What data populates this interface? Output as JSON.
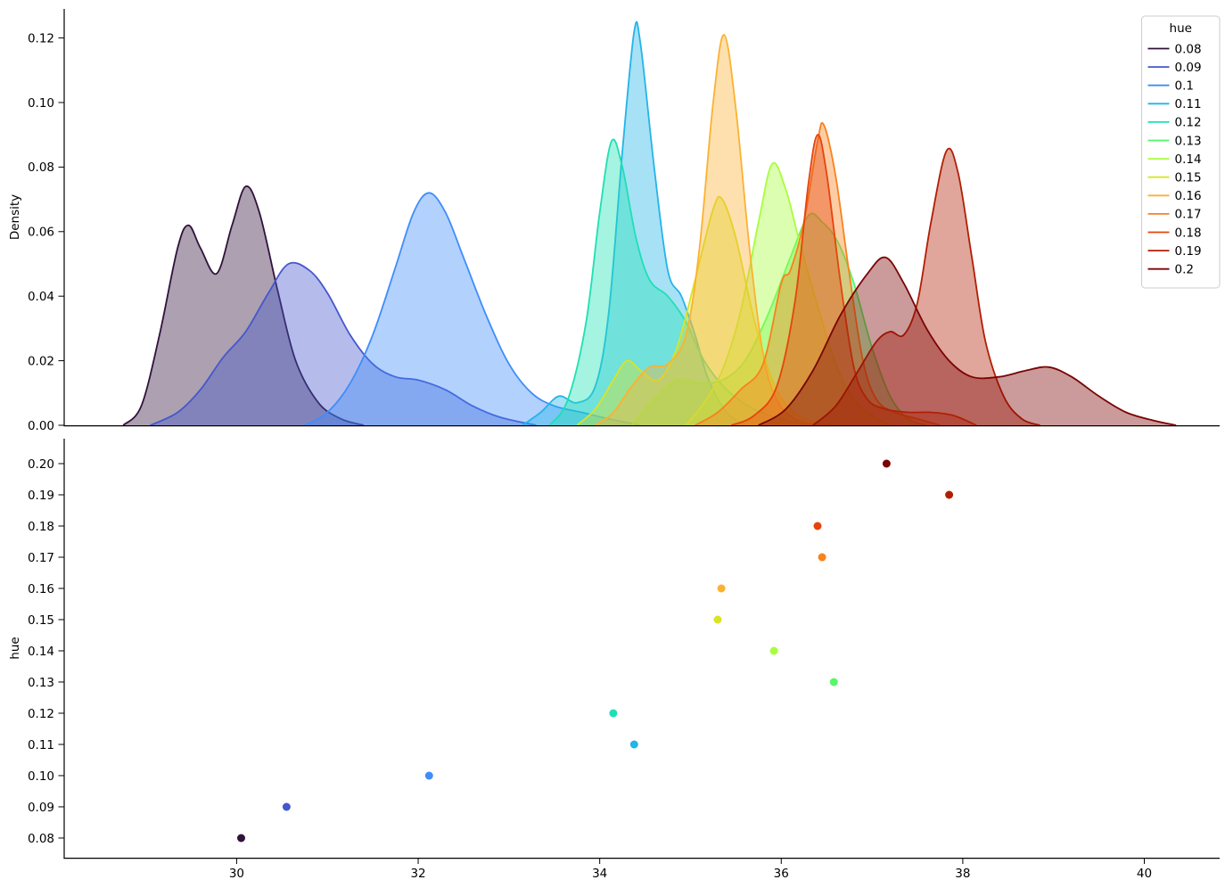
{
  "figure": {
    "background": "#ffffff"
  },
  "chart_data": [
    {
      "id": "kde-plot",
      "type": "area",
      "title": "",
      "xlabel": "",
      "ylabel": "Density",
      "xlim": [
        28.1,
        40.83
      ],
      "ylim": [
        0,
        0.129
      ],
      "grid": false,
      "legend": {
        "title": "hue",
        "position": "upper right"
      },
      "yticks": [
        {
          "value": 0.0,
          "label": "0.00"
        },
        {
          "value": 0.02,
          "label": "0.02"
        },
        {
          "value": 0.04,
          "label": "0.04"
        },
        {
          "value": 0.06,
          "label": "0.06"
        },
        {
          "value": 0.08,
          "label": "0.08"
        },
        {
          "value": 0.1,
          "label": "0.10"
        },
        {
          "value": 0.12,
          "label": "0.12"
        }
      ],
      "fill_alpha": 0.4,
      "series": [
        {
          "name": "0.08",
          "color": "#30123b",
          "points": [
            [
              28.75,
              0
            ],
            [
              28.95,
              0.006
            ],
            [
              29.15,
              0.028
            ],
            [
              29.35,
              0.055
            ],
            [
              29.47,
              0.062
            ],
            [
              29.6,
              0.055
            ],
            [
              29.78,
              0.047
            ],
            [
              29.95,
              0.062
            ],
            [
              30.1,
              0.074
            ],
            [
              30.25,
              0.066
            ],
            [
              30.45,
              0.042
            ],
            [
              30.65,
              0.02
            ],
            [
              30.9,
              0.007
            ],
            [
              31.15,
              0.002
            ],
            [
              31.4,
              0
            ]
          ]
        },
        {
          "name": "0.09",
          "color": "#4557cc",
          "points": [
            [
              29.05,
              0
            ],
            [
              29.35,
              0.004
            ],
            [
              29.6,
              0.011
            ],
            [
              29.85,
              0.021
            ],
            [
              30.1,
              0.029
            ],
            [
              30.35,
              0.041
            ],
            [
              30.57,
              0.05
            ],
            [
              30.8,
              0.048
            ],
            [
              31.0,
              0.041
            ],
            [
              31.25,
              0.028
            ],
            [
              31.5,
              0.019
            ],
            [
              31.75,
              0.015
            ],
            [
              32.0,
              0.014
            ],
            [
              32.3,
              0.011
            ],
            [
              32.6,
              0.006
            ],
            [
              32.9,
              0.0025
            ],
            [
              33.3,
              0
            ]
          ]
        },
        {
          "name": "0.1",
          "color": "#3f8dfb",
          "points": [
            [
              30.75,
              0
            ],
            [
              31.0,
              0.004
            ],
            [
              31.25,
              0.013
            ],
            [
              31.5,
              0.028
            ],
            [
              31.75,
              0.049
            ],
            [
              31.95,
              0.066
            ],
            [
              32.12,
              0.072
            ],
            [
              32.3,
              0.066
            ],
            [
              32.5,
              0.052
            ],
            [
              32.75,
              0.034
            ],
            [
              33.0,
              0.019
            ],
            [
              33.25,
              0.01
            ],
            [
              33.5,
              0.006
            ],
            [
              33.8,
              0.004
            ],
            [
              34.1,
              0.002
            ],
            [
              34.45,
              0
            ]
          ]
        },
        {
          "name": "0.11",
          "color": "#23b4e9",
          "points": [
            [
              33.15,
              0
            ],
            [
              33.35,
              0.004
            ],
            [
              33.55,
              0.009
            ],
            [
              33.75,
              0.007
            ],
            [
              33.95,
              0.012
            ],
            [
              34.1,
              0.035
            ],
            [
              34.25,
              0.085
            ],
            [
              34.38,
              0.122
            ],
            [
              34.45,
              0.118
            ],
            [
              34.6,
              0.08
            ],
            [
              34.75,
              0.048
            ],
            [
              34.9,
              0.04
            ],
            [
              35.05,
              0.028
            ],
            [
              35.2,
              0.014
            ],
            [
              35.4,
              0.004
            ],
            [
              35.6,
              0
            ]
          ]
        },
        {
          "name": "0.12",
          "color": "#1fe0b4",
          "points": [
            [
              33.45,
              0
            ],
            [
              33.65,
              0.008
            ],
            [
              33.85,
              0.032
            ],
            [
              34.0,
              0.066
            ],
            [
              34.13,
              0.088
            ],
            [
              34.25,
              0.08
            ],
            [
              34.4,
              0.058
            ],
            [
              34.55,
              0.045
            ],
            [
              34.75,
              0.04
            ],
            [
              34.95,
              0.032
            ],
            [
              35.15,
              0.02
            ],
            [
              35.4,
              0.011
            ],
            [
              35.7,
              0.005
            ],
            [
              36.0,
              0.002
            ],
            [
              36.3,
              0
            ]
          ]
        },
        {
          "name": "0.13",
          "color": "#55f868",
          "points": [
            [
              34.35,
              0
            ],
            [
              34.6,
              0.008
            ],
            [
              34.85,
              0.014
            ],
            [
              35.1,
              0.013
            ],
            [
              35.35,
              0.014
            ],
            [
              35.6,
              0.02
            ],
            [
              35.85,
              0.034
            ],
            [
              36.1,
              0.052
            ],
            [
              36.3,
              0.065
            ],
            [
              36.45,
              0.063
            ],
            [
              36.62,
              0.057
            ],
            [
              36.8,
              0.044
            ],
            [
              37.0,
              0.024
            ],
            [
              37.2,
              0.009
            ],
            [
              37.4,
              0.002
            ],
            [
              37.6,
              0
            ]
          ]
        },
        {
          "name": "0.14",
          "color": "#a8fd3d",
          "points": [
            [
              34.95,
              0
            ],
            [
              35.15,
              0.007
            ],
            [
              35.35,
              0.017
            ],
            [
              35.55,
              0.035
            ],
            [
              35.75,
              0.063
            ],
            [
              35.9,
              0.081
            ],
            [
              36.05,
              0.073
            ],
            [
              36.2,
              0.057
            ],
            [
              36.4,
              0.037
            ],
            [
              36.6,
              0.019
            ],
            [
              36.8,
              0.008
            ],
            [
              37.0,
              0.003
            ],
            [
              37.2,
              0
            ]
          ]
        },
        {
          "name": "0.15",
          "color": "#d9e426",
          "points": [
            [
              33.75,
              0
            ],
            [
              33.95,
              0.005
            ],
            [
              34.15,
              0.014
            ],
            [
              34.3,
              0.02
            ],
            [
              34.45,
              0.017
            ],
            [
              34.65,
              0.014
            ],
            [
              34.85,
              0.024
            ],
            [
              35.05,
              0.045
            ],
            [
              35.25,
              0.067
            ],
            [
              35.35,
              0.07
            ],
            [
              35.5,
              0.058
            ],
            [
              35.7,
              0.033
            ],
            [
              35.9,
              0.014
            ],
            [
              36.1,
              0.005
            ],
            [
              36.35,
              0.001
            ],
            [
              36.6,
              0
            ]
          ]
        },
        {
          "name": "0.16",
          "color": "#fbb232",
          "points": [
            [
              33.95,
              0
            ],
            [
              34.15,
              0.004
            ],
            [
              34.35,
              0.012
            ],
            [
              34.55,
              0.018
            ],
            [
              34.75,
              0.019
            ],
            [
              34.95,
              0.028
            ],
            [
              35.1,
              0.055
            ],
            [
              35.25,
              0.1
            ],
            [
              35.37,
              0.121
            ],
            [
              35.5,
              0.098
            ],
            [
              35.65,
              0.055
            ],
            [
              35.8,
              0.022
            ],
            [
              35.95,
              0.008
            ],
            [
              36.15,
              0.002
            ],
            [
              36.4,
              0
            ]
          ]
        },
        {
          "name": "0.17",
          "color": "#f8821d",
          "points": [
            [
              35.05,
              0
            ],
            [
              35.3,
              0.004
            ],
            [
              35.55,
              0.011
            ],
            [
              35.8,
              0.019
            ],
            [
              36.0,
              0.044
            ],
            [
              36.1,
              0.048
            ],
            [
              36.25,
              0.063
            ],
            [
              36.4,
              0.088
            ],
            [
              36.47,
              0.093
            ],
            [
              36.6,
              0.077
            ],
            [
              36.75,
              0.047
            ],
            [
              36.9,
              0.02
            ],
            [
              37.05,
              0.008
            ],
            [
              37.25,
              0.004
            ],
            [
              37.5,
              0.002
            ],
            [
              37.75,
              0
            ]
          ]
        },
        {
          "name": "0.18",
          "color": "#e6440c",
          "points": [
            [
              35.45,
              0
            ],
            [
              35.7,
              0.003
            ],
            [
              35.95,
              0.012
            ],
            [
              36.15,
              0.038
            ],
            [
              36.3,
              0.075
            ],
            [
              36.4,
              0.09
            ],
            [
              36.5,
              0.078
            ],
            [
              36.65,
              0.045
            ],
            [
              36.8,
              0.018
            ],
            [
              36.95,
              0.008
            ],
            [
              37.15,
              0.005
            ],
            [
              37.4,
              0.004
            ],
            [
              37.65,
              0.004
            ],
            [
              37.9,
              0.003
            ],
            [
              38.15,
              0
            ]
          ]
        },
        {
          "name": "0.19",
          "color": "#b11e04",
          "points": [
            [
              36.35,
              0
            ],
            [
              36.6,
              0.006
            ],
            [
              36.85,
              0.017
            ],
            [
              37.05,
              0.026
            ],
            [
              37.2,
              0.029
            ],
            [
              37.35,
              0.028
            ],
            [
              37.5,
              0.038
            ],
            [
              37.65,
              0.063
            ],
            [
              37.82,
              0.085
            ],
            [
              37.95,
              0.078
            ],
            [
              38.1,
              0.052
            ],
            [
              38.25,
              0.026
            ],
            [
              38.45,
              0.009
            ],
            [
              38.65,
              0.002
            ],
            [
              38.85,
              0
            ]
          ]
        },
        {
          "name": "0.2",
          "color": "#7a0403",
          "points": [
            [
              35.75,
              0
            ],
            [
              36.05,
              0.005
            ],
            [
              36.35,
              0.017
            ],
            [
              36.65,
              0.034
            ],
            [
              36.95,
              0.047
            ],
            [
              37.15,
              0.052
            ],
            [
              37.35,
              0.044
            ],
            [
              37.6,
              0.03
            ],
            [
              37.85,
              0.02
            ],
            [
              38.1,
              0.015
            ],
            [
              38.4,
              0.015
            ],
            [
              38.7,
              0.017
            ],
            [
              38.95,
              0.018
            ],
            [
              39.2,
              0.015
            ],
            [
              39.5,
              0.009
            ],
            [
              39.8,
              0.004
            ],
            [
              40.1,
              0.0015
            ],
            [
              40.35,
              0
            ]
          ]
        }
      ]
    },
    {
      "id": "scatter-plot",
      "type": "scatter",
      "title": "",
      "xlabel": "",
      "ylabel": "hue",
      "xlim": [
        28.1,
        40.83
      ],
      "ylim": [
        0.0737,
        0.208
      ],
      "grid": false,
      "xticks": [
        {
          "value": 30,
          "label": "30"
        },
        {
          "value": 32,
          "label": "32"
        },
        {
          "value": 34,
          "label": "34"
        },
        {
          "value": 36,
          "label": "36"
        },
        {
          "value": 38,
          "label": "38"
        },
        {
          "value": 40,
          "label": "40"
        }
      ],
      "yticks": [
        {
          "value": 0.08,
          "label": "0.08"
        },
        {
          "value": 0.09,
          "label": "0.09"
        },
        {
          "value": 0.1,
          "label": "0.10"
        },
        {
          "value": 0.11,
          "label": "0.11"
        },
        {
          "value": 0.12,
          "label": "0.12"
        },
        {
          "value": 0.13,
          "label": "0.13"
        },
        {
          "value": 0.14,
          "label": "0.14"
        },
        {
          "value": 0.15,
          "label": "0.15"
        },
        {
          "value": 0.16,
          "label": "0.16"
        },
        {
          "value": 0.17,
          "label": "0.17"
        },
        {
          "value": 0.18,
          "label": "0.18"
        },
        {
          "value": 0.19,
          "label": "0.19"
        },
        {
          "value": 0.2,
          "label": "0.20"
        }
      ],
      "points": [
        {
          "hue": "0.08",
          "x": 30.05,
          "y": 0.08,
          "color": "#30123b"
        },
        {
          "hue": "0.09",
          "x": 30.55,
          "y": 0.09,
          "color": "#4557cc"
        },
        {
          "hue": "0.1",
          "x": 32.12,
          "y": 0.1,
          "color": "#3f8dfb"
        },
        {
          "hue": "0.11",
          "x": 34.38,
          "y": 0.11,
          "color": "#23b4e9"
        },
        {
          "hue": "0.12",
          "x": 34.15,
          "y": 0.12,
          "color": "#1fe0b4"
        },
        {
          "hue": "0.13",
          "x": 36.58,
          "y": 0.13,
          "color": "#55f868"
        },
        {
          "hue": "0.14",
          "x": 35.92,
          "y": 0.14,
          "color": "#a8fd3d"
        },
        {
          "hue": "0.15",
          "x": 35.3,
          "y": 0.15,
          "color": "#d9e426"
        },
        {
          "hue": "0.16",
          "x": 35.34,
          "y": 0.16,
          "color": "#fbb232"
        },
        {
          "hue": "0.17",
          "x": 36.45,
          "y": 0.17,
          "color": "#f8821d"
        },
        {
          "hue": "0.18",
          "x": 36.4,
          "y": 0.18,
          "color": "#e6440c"
        },
        {
          "hue": "0.19",
          "x": 37.85,
          "y": 0.19,
          "color": "#b11e04"
        },
        {
          "hue": "0.2",
          "x": 37.16,
          "y": 0.2,
          "color": "#7a0403"
        }
      ]
    }
  ]
}
